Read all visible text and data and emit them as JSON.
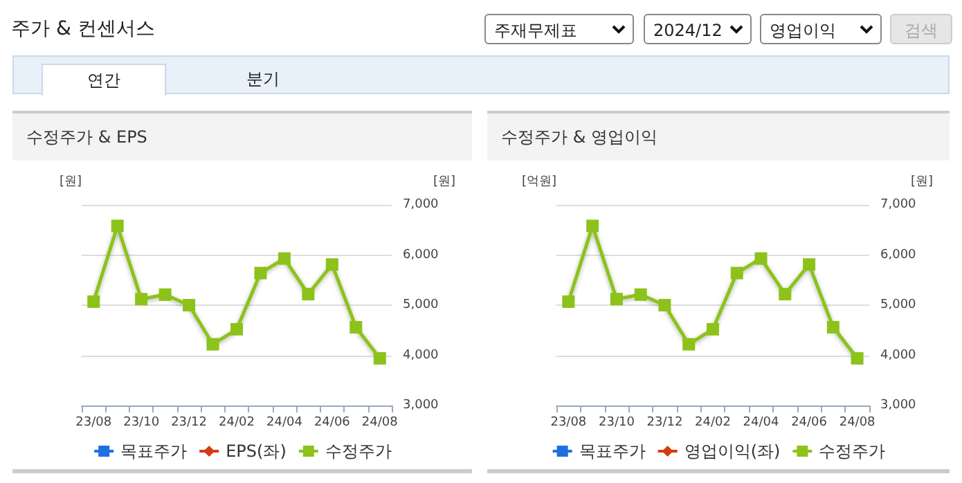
{
  "chart_data": [
    {
      "type": "other",
      "title": "주가 & 컨센서스",
      "annotations": [
        "주재무제표",
        "2024/12",
        "영업이익",
        "검색",
        "연간",
        "분기"
      ]
    },
    {
      "type": "line",
      "title": "수정주가 & EPS",
      "ylabel": "[원]",
      "y2label": "[원]",
      "categories": [
        "23/08",
        null,
        "23/10",
        null,
        "23/12",
        null,
        "24/02",
        null,
        "24/04",
        null,
        "24/06",
        null,
        "24/08"
      ],
      "series": [
        {
          "name": "목표주가",
          "color": "#1f6fe0",
          "marker": "square",
          "values": [
            null,
            null,
            null,
            null,
            null,
            null,
            null,
            null,
            null,
            null,
            null,
            null,
            null
          ]
        },
        {
          "name": "EPS(좌)",
          "color": "#d63a12",
          "marker": "diamond",
          "values": [
            null,
            null,
            null,
            null,
            null,
            null,
            null,
            null,
            null,
            null,
            null,
            null,
            null
          ]
        },
        {
          "name": "수정주가",
          "color": "#8cc21a",
          "marker": "square",
          "axis": "y2",
          "values": [
            5070,
            6580,
            5120,
            5210,
            5000,
            4220,
            4520,
            5640,
            5930,
            5220,
            5810,
            4560,
            3940
          ]
        }
      ],
      "y2lim": [
        3000,
        7000
      ],
      "y2ticks": [
        {
          "value": 3000,
          "label": "3,000"
        },
        {
          "value": 4000,
          "label": "4,000"
        },
        {
          "value": 5000,
          "label": "5,000"
        },
        {
          "value": 6000,
          "label": "6,000"
        },
        {
          "value": 7000,
          "label": "7,000"
        }
      ],
      "grid": "y",
      "legend": "bottom"
    },
    {
      "type": "line",
      "title": "수정주가 & 영업이익",
      "ylabel": "[억원]",
      "y2label": "[원]",
      "categories": [
        "23/08",
        null,
        "23/10",
        null,
        "23/12",
        null,
        "24/02",
        null,
        "24/04",
        null,
        "24/06",
        null,
        "24/08"
      ],
      "series": [
        {
          "name": "목표주가",
          "color": "#1f6fe0",
          "marker": "square",
          "values": [
            null,
            null,
            null,
            null,
            null,
            null,
            null,
            null,
            null,
            null,
            null,
            null,
            null
          ]
        },
        {
          "name": "영업이익(좌)",
          "color": "#d63a12",
          "marker": "diamond",
          "values": [
            null,
            null,
            null,
            null,
            null,
            null,
            null,
            null,
            null,
            null,
            null,
            null,
            null
          ]
        },
        {
          "name": "수정주가",
          "color": "#8cc21a",
          "marker": "square",
          "axis": "y2",
          "values": [
            5070,
            6580,
            5120,
            5210,
            5000,
            4220,
            4520,
            5640,
            5930,
            5220,
            5810,
            4560,
            3940
          ]
        }
      ],
      "y2lim": [
        3000,
        7000
      ],
      "y2ticks": [
        {
          "value": 3000,
          "label": "3,000"
        },
        {
          "value": 4000,
          "label": "4,000"
        },
        {
          "value": 5000,
          "label": "5,000"
        },
        {
          "value": 6000,
          "label": "6,000"
        },
        {
          "value": 7000,
          "label": "7,000"
        }
      ],
      "grid": "y",
      "legend": "bottom"
    }
  ]
}
